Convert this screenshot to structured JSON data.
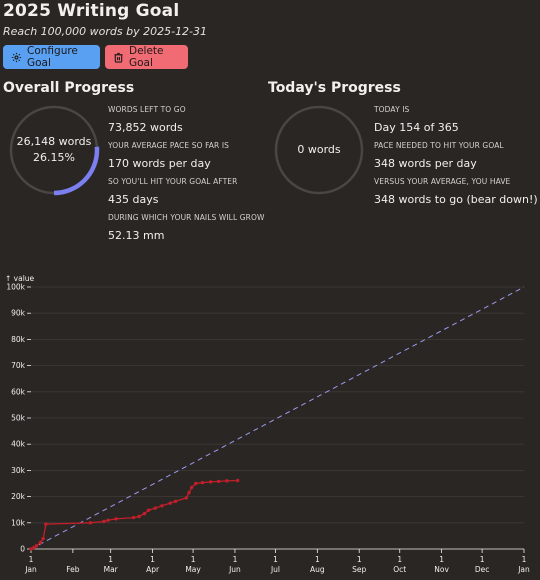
{
  "header": {
    "title": "2025 Writing Goal",
    "subtitle": "Reach 100,000 words by 2025-12-31"
  },
  "actions": {
    "configure_label": "Configure Goal",
    "delete_label": "Delete Goal"
  },
  "overall": {
    "heading": "Overall Progress",
    "words": "26,148 words",
    "percent_text": "26.15%",
    "progress_fraction": 0.2615,
    "stats": [
      {
        "label": "Words left to go",
        "value": "73,852 words"
      },
      {
        "label": "Your average pace so far is",
        "value": "170 words per day"
      },
      {
        "label": "So you'll hit your goal after",
        "value": "435 days"
      },
      {
        "label": "During which your nails will grow",
        "value": "52.13 mm"
      }
    ]
  },
  "today": {
    "heading": "Today's Progress",
    "words": "0 words",
    "progress_fraction": 0,
    "stats": [
      {
        "label": "Today is",
        "value": "Day 154 of 365"
      },
      {
        "label": "Pace needed to hit your goal",
        "value": "348 words per day"
      },
      {
        "label": "Versus your average, you have",
        "value": "348 words to go (bear down!)"
      }
    ]
  },
  "colors": {
    "background": "#292624",
    "ring_track": "#4a4643",
    "ring_fill": "#7b7ff0",
    "actual_line": "#c21f2a",
    "target_line": "#9a9cf0",
    "configure_button": "#5aa0f2",
    "delete_button": "#f06b73"
  },
  "chart_data": {
    "type": "line",
    "ylabel": "↑ value",
    "ylim": [
      0,
      100000
    ],
    "xlim": [
      "2025-01-01",
      "2026-01-01"
    ],
    "y_ticks": [
      "0",
      "10k",
      "20k",
      "30k",
      "40k",
      "50k",
      "60k",
      "70k",
      "80k",
      "90k",
      "100k"
    ],
    "x_ticks": [
      {
        "day": "1",
        "month": "Jan",
        "date": "2025-01-01"
      },
      {
        "day": "",
        "month": "Feb",
        "date": "2025-02-01"
      },
      {
        "day": "1",
        "month": "Mar",
        "date": "2025-03-01"
      },
      {
        "day": "1",
        "month": "Apr",
        "date": "2025-04-01"
      },
      {
        "day": "1",
        "month": "May",
        "date": "2025-05-01"
      },
      {
        "day": "1",
        "month": "Jun",
        "date": "2025-06-01"
      },
      {
        "day": "1",
        "month": "Jul",
        "date": "2025-07-01"
      },
      {
        "day": "1",
        "month": "Aug",
        "date": "2025-08-01"
      },
      {
        "day": "1",
        "month": "Sep",
        "date": "2025-09-01"
      },
      {
        "day": "1",
        "month": "Oct",
        "date": "2025-10-01"
      },
      {
        "day": "1",
        "month": "Nov",
        "date": "2025-11-01"
      },
      {
        "day": "1",
        "month": "Dec",
        "date": "2025-12-01"
      },
      {
        "day": "1",
        "month": "Jan",
        "date": "2026-01-01"
      }
    ],
    "series": [
      {
        "style": "dashed",
        "points": [
          [
            "2025-01-01",
            0
          ],
          [
            "2026-01-01",
            100000
          ]
        ]
      },
      {
        "style": "solid-markers",
        "points": [
          [
            "2025-01-01",
            0
          ],
          [
            "2025-01-03",
            500
          ],
          [
            "2025-01-05",
            1200
          ],
          [
            "2025-01-08",
            2500
          ],
          [
            "2025-01-10",
            4000
          ],
          [
            "2025-01-12",
            9500
          ],
          [
            "2025-02-14",
            10000
          ],
          [
            "2025-02-24",
            10500
          ],
          [
            "2025-02-27",
            11000
          ],
          [
            "2025-03-05",
            11500
          ],
          [
            "2025-03-18",
            12000
          ],
          [
            "2025-03-22",
            12400
          ],
          [
            "2025-03-26",
            13500
          ],
          [
            "2025-03-29",
            14800
          ],
          [
            "2025-04-03",
            15600
          ],
          [
            "2025-04-08",
            16500
          ],
          [
            "2025-04-14",
            17500
          ],
          [
            "2025-04-18",
            18200
          ],
          [
            "2025-04-26",
            19500
          ],
          [
            "2025-04-28",
            21500
          ],
          [
            "2025-04-30",
            23500
          ],
          [
            "2025-05-03",
            25000
          ],
          [
            "2025-05-08",
            25300
          ],
          [
            "2025-05-14",
            25600
          ],
          [
            "2025-05-20",
            25800
          ],
          [
            "2025-05-26",
            26000
          ],
          [
            "2025-06-03",
            26148
          ]
        ]
      }
    ]
  }
}
